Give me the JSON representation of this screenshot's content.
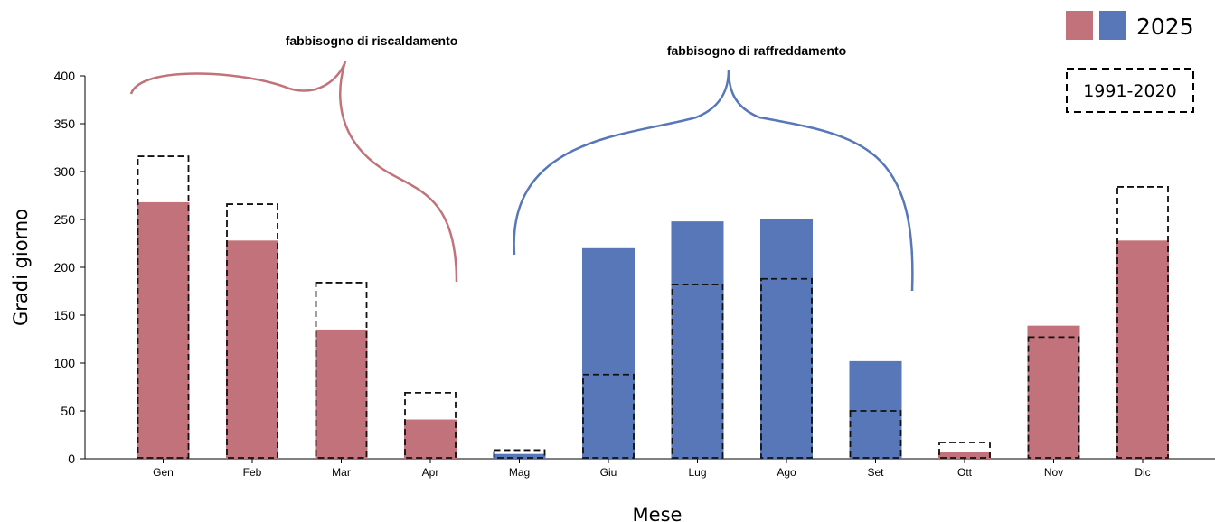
{
  "chart_data": {
    "type": "bar",
    "title": "",
    "xlabel": "Mese",
    "ylabel": "Gradi giorno",
    "ylim": [
      0,
      400
    ],
    "yticks": [
      0,
      50,
      100,
      150,
      200,
      250,
      300,
      350,
      400
    ],
    "categories": [
      "Gen",
      "Feb",
      "Mar",
      "Apr",
      "Mag",
      "Giu",
      "Lug",
      "Ago",
      "Set",
      "Ott",
      "Nov",
      "Dic"
    ],
    "series": [
      {
        "name": "2025",
        "values": [
          268,
          228,
          135,
          41,
          5,
          220,
          248,
          250,
          102,
          7,
          139,
          228
        ],
        "colors": [
          "#c2727a",
          "#c2727a",
          "#c2727a",
          "#c2727a",
          "#5777b8",
          "#5777b8",
          "#5777b8",
          "#5777b8",
          "#5777b8",
          "#c2727a",
          "#c2727a",
          "#c2727a"
        ]
      },
      {
        "name": "1991-2020",
        "values": [
          316,
          266,
          184,
          69,
          9,
          88,
          182,
          188,
          50,
          17,
          127,
          284
        ],
        "style": "dashed-outline"
      }
    ],
    "annotations": [
      {
        "text": "fabbisogno di riscaldamento",
        "color": "#c2727a"
      },
      {
        "text": "fabbisogno di raffreddamento",
        "color": "#5777b8"
      }
    ],
    "legend": {
      "placement": "top-right",
      "year_label": "2025",
      "normal_label": "1991-2020"
    },
    "grid": false
  },
  "colors": {
    "heating": "#c2727a",
    "cooling": "#5777b8"
  }
}
